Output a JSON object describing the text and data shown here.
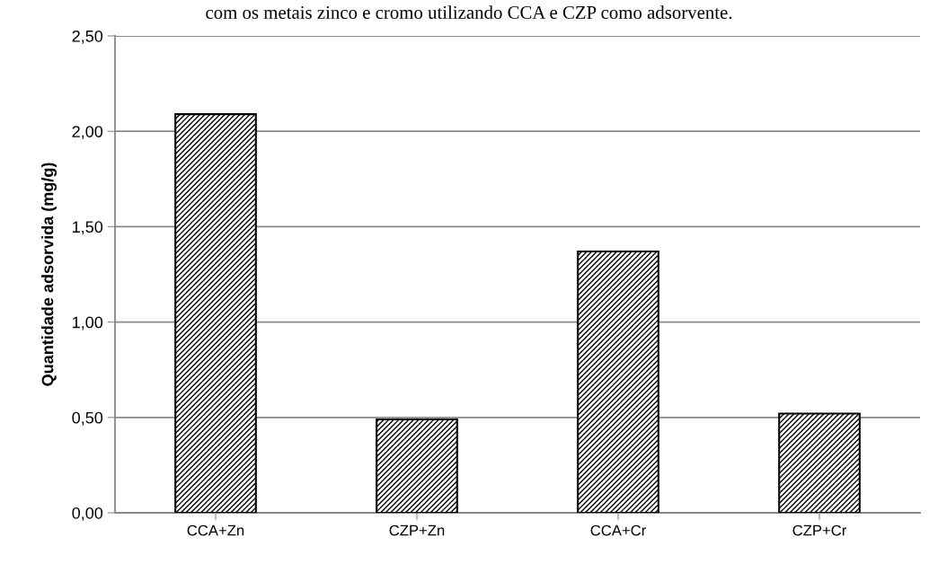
{
  "chart_data": {
    "type": "bar",
    "title": "com os metais zinco e cromo utilizando CCA e CZP como adsorvente.",
    "ylabel": "Quantidade adsorvida (mg/g)",
    "categories": [
      "CCA+Zn",
      "CZP+Zn",
      "CCA+Cr",
      "CZP+Cr"
    ],
    "series": [
      {
        "color": "#000000",
        "values": [
          2.09,
          0.49,
          1.37,
          0.52
        ]
      }
    ],
    "ylim": [
      0,
      2.5
    ],
    "yticks": [
      {
        "value": 0,
        "label": "0,00"
      },
      {
        "value": 0.5,
        "label": "0,50"
      },
      {
        "value": 1,
        "label": "1,00"
      },
      {
        "value": 1.5,
        "label": "1,50"
      },
      {
        "value": 2,
        "label": "2,00"
      },
      {
        "value": 2.5,
        "label": "2,50"
      }
    ],
    "grid": "y",
    "legend": false
  }
}
